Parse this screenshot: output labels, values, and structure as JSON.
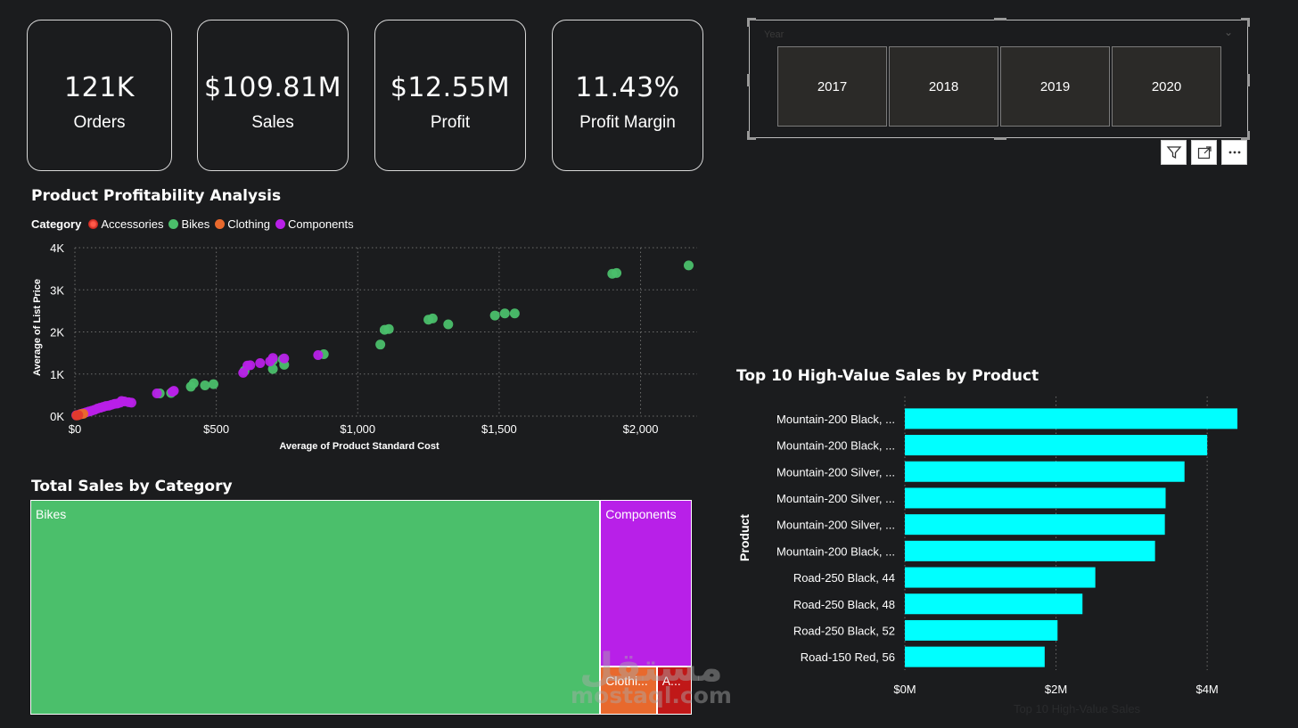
{
  "kpis": [
    {
      "value": "121K",
      "label": "Orders"
    },
    {
      "value": "$109.81M",
      "label": "Sales"
    },
    {
      "value": "$12.55M",
      "label": "Profit"
    },
    {
      "value": "11.43%",
      "label": "Profit Margin"
    }
  ],
  "slicer": {
    "header": "Year",
    "years": [
      "2017",
      "2018",
      "2019",
      "2020"
    ]
  },
  "scatter_title": "Product Profitability Analysis",
  "treemap_title": "Total Sales by Category",
  "bar_title": "Top 10 High-Value Sales by Product",
  "legend": {
    "title": "Category",
    "items": [
      {
        "name": "Accessories",
        "color": "#e23a2e"
      },
      {
        "name": "Bikes",
        "color": "#4bbf6b"
      },
      {
        "name": "Clothing",
        "color": "#e8692d"
      },
      {
        "name": "Components",
        "color": "#b820e8"
      }
    ]
  },
  "watermark": {
    "arabic": "مستقل",
    "latin": "mostaql.com"
  },
  "chart_data": [
    {
      "type": "scatter",
      "title": "Product Profitability Analysis",
      "xlabel": "Average of Product Standard Cost",
      "ylabel": "Average of List Price",
      "xlim": [
        0,
        2200
      ],
      "ylim": [
        0,
        4000
      ],
      "x_ticks": [
        0,
        500,
        1000,
        1500,
        2000
      ],
      "x_tick_labels": [
        "$0",
        "$500",
        "$1,000",
        "$1,500",
        "$2,000"
      ],
      "y_ticks": [
        0,
        1000,
        2000,
        3000,
        4000
      ],
      "y_tick_labels": [
        "0K",
        "1K",
        "2K",
        "3K",
        "4K"
      ],
      "grid": true,
      "legend_position": "top-left",
      "series": [
        {
          "name": "Bikes",
          "color": "#4bbf6b",
          "points": [
            [
              2170,
              3580
            ],
            [
              1915,
              3400
            ],
            [
              1900,
              3380
            ],
            [
              1555,
              2440
            ],
            [
              1520,
              2440
            ],
            [
              1485,
              2390
            ],
            [
              1320,
              2180
            ],
            [
              1265,
              2320
            ],
            [
              1250,
              2290
            ],
            [
              1110,
              2070
            ],
            [
              1095,
              2050
            ],
            [
              1080,
              1700
            ],
            [
              880,
              1470
            ],
            [
              740,
              1220
            ],
            [
              700,
              1120
            ],
            [
              735,
              1350
            ],
            [
              700,
              1320
            ],
            [
              600,
              1080
            ],
            [
              490,
              760
            ],
            [
              460,
              730
            ],
            [
              420,
              780
            ],
            [
              410,
              700
            ],
            [
              340,
              550
            ],
            [
              300,
              540
            ]
          ]
        },
        {
          "name": "Components",
          "color": "#b820e8",
          "points": [
            [
              860,
              1450
            ],
            [
              740,
              1370
            ],
            [
              700,
              1380
            ],
            [
              690,
              1300
            ],
            [
              655,
              1260
            ],
            [
              620,
              1210
            ],
            [
              610,
              1200
            ],
            [
              595,
              1030
            ],
            [
              350,
              600
            ],
            [
              345,
              580
            ],
            [
              290,
              540
            ],
            [
              200,
              320
            ],
            [
              190,
              330
            ],
            [
              175,
              350
            ],
            [
              165,
              360
            ],
            [
              160,
              320
            ],
            [
              150,
              300
            ],
            [
              140,
              290
            ],
            [
              130,
              270
            ],
            [
              120,
              250
            ],
            [
              110,
              240
            ],
            [
              100,
              220
            ],
            [
              90,
              200
            ],
            [
              80,
              180
            ],
            [
              70,
              150
            ],
            [
              60,
              130
            ],
            [
              50,
              110
            ],
            [
              40,
              90
            ],
            [
              30,
              70
            ],
            [
              20,
              50
            ],
            [
              10,
              30
            ],
            [
              5,
              20
            ]
          ]
        },
        {
          "name": "Clothing",
          "color": "#e8692d",
          "points": [
            [
              30,
              55
            ],
            [
              25,
              50
            ],
            [
              20,
              45
            ]
          ]
        },
        {
          "name": "Accessories",
          "color": "#e23a2e",
          "points": [
            [
              8,
              20
            ],
            [
              12,
              25
            ],
            [
              6,
              15
            ]
          ]
        }
      ]
    },
    {
      "type": "treemap",
      "title": "Total Sales by Category",
      "categories": [
        "Bikes",
        "Components",
        "Clothing",
        "Accessories"
      ],
      "labels": [
        "Bikes",
        "Components",
        "Clothi...",
        "A..."
      ],
      "values": [
        94.6,
        11.8,
        2.1,
        1.3
      ],
      "colors": [
        "#4bbf6b",
        "#b820e8",
        "#e8692d",
        "#c01818"
      ]
    },
    {
      "type": "bar",
      "orientation": "horizontal",
      "title": "Top 10 High-Value Sales by Product",
      "ylabel": "Product",
      "xlabel": "Top 10 High-Value Sales",
      "categories": [
        "Mountain-200 Black, ...",
        "Mountain-200 Black, ...",
        "Mountain-200 Silver, ...",
        "Mountain-200 Silver, ...",
        "Mountain-200 Silver, ...",
        "Mountain-200 Black, ...",
        "Road-250 Black, 44",
        "Road-250 Black, 48",
        "Road-250 Black, 52",
        "Road-150 Red, 56"
      ],
      "values": [
        4.4,
        4.0,
        3.7,
        3.45,
        3.44,
        3.31,
        2.52,
        2.35,
        2.02,
        1.85
      ],
      "unit": "M",
      "xlim": [
        0,
        4.6
      ],
      "x_ticks": [
        0,
        2,
        4
      ],
      "x_tick_labels": [
        "$0M",
        "$2M",
        "$4M"
      ],
      "bar_color": "#00ffff",
      "grid": true
    }
  ]
}
